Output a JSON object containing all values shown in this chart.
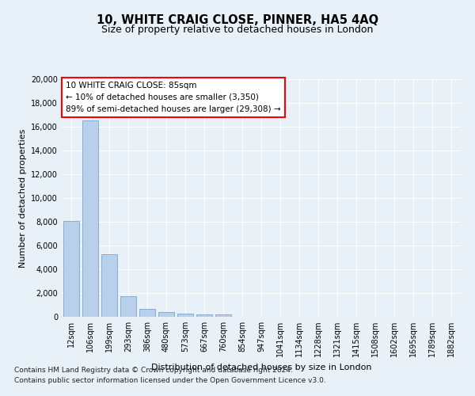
{
  "title_line1": "10, WHITE CRAIG CLOSE, PINNER, HA5 4AQ",
  "title_line2": "Size of property relative to detached houses in London",
  "xlabel": "Distribution of detached houses by size in London",
  "ylabel": "Number of detached properties",
  "bar_labels": [
    "12sqm",
    "106sqm",
    "199sqm",
    "293sqm",
    "386sqm",
    "480sqm",
    "573sqm",
    "667sqm",
    "760sqm",
    "854sqm",
    "947sqm",
    "1041sqm",
    "1134sqm",
    "1228sqm",
    "1321sqm",
    "1415sqm",
    "1508sqm",
    "1602sqm",
    "1695sqm",
    "1789sqm",
    "1882sqm"
  ],
  "bar_values": [
    8100,
    16500,
    5300,
    1750,
    700,
    380,
    280,
    230,
    200,
    0,
    0,
    0,
    0,
    0,
    0,
    0,
    0,
    0,
    0,
    0,
    0
  ],
  "bar_color": "#b8d0ea",
  "bar_edgecolor": "#6699cc",
  "ylim": [
    0,
    20000
  ],
  "yticks": [
    0,
    2000,
    4000,
    6000,
    8000,
    10000,
    12000,
    14000,
    16000,
    18000,
    20000
  ],
  "annotation_text_line1": "10 WHITE CRAIG CLOSE: 85sqm",
  "annotation_text_line2": "← 10% of detached houses are smaller (3,350)",
  "annotation_text_line3": "89% of semi-detached houses are larger (29,308) →",
  "footnote1": "Contains HM Land Registry data © Crown copyright and database right 2024.",
  "footnote2": "Contains public sector information licensed under the Open Government Licence v3.0.",
  "bg_color": "#e8f0f8",
  "grid_color": "#ffffff",
  "title_fontsize": 10.5,
  "subtitle_fontsize": 9,
  "axis_label_fontsize": 8,
  "tick_fontsize": 7,
  "annotation_fontsize": 7.5,
  "footnote_fontsize": 6.5
}
